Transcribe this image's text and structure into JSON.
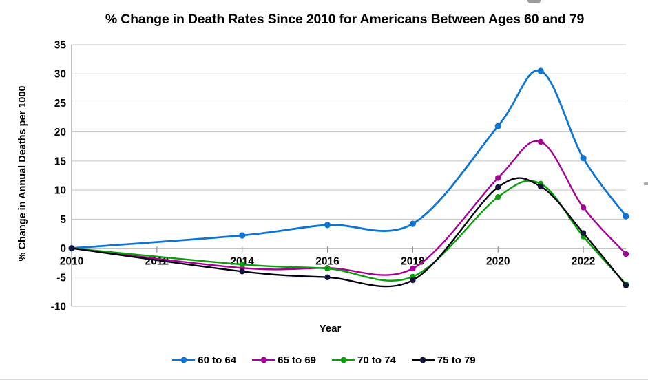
{
  "chart_data": {
    "type": "line",
    "smoothed": true,
    "title": "% Change in Death Rates Since 2010 for Americans Between Ages 60 and 79",
    "xlabel": "Year",
    "ylabel": "% Change in Annual Deaths per 1000",
    "x": [
      2010,
      2014,
      2016,
      2018,
      2020,
      2021,
      2022,
      2023
    ],
    "series": [
      {
        "name": "60 to 64",
        "color": "#0b74d4",
        "line_width": 2.8,
        "marker_radius": 4.6,
        "values": [
          0,
          2.2,
          4.0,
          4.2,
          21.0,
          30.5,
          15.5,
          5.5
        ]
      },
      {
        "name": "65 to 69",
        "color": "#a60095",
        "line_width": 2.4,
        "marker_radius": 4.2,
        "values": [
          0,
          -3.4,
          -3.4,
          -3.5,
          12.1,
          18.3,
          7.0,
          -1.0
        ]
      },
      {
        "name": "70 to 74",
        "color": "#0a9e0a",
        "line_width": 2.4,
        "marker_radius": 4.2,
        "values": [
          0,
          -2.8,
          -3.5,
          -4.9,
          8.8,
          11.1,
          2.0,
          -6.2
        ]
      },
      {
        "name": "75 to 79",
        "color": "#020210",
        "marker_color": "#13133a",
        "line_width": 2.4,
        "marker_radius": 4.2,
        "values": [
          0,
          -4.0,
          -5.0,
          -5.5,
          10.5,
          10.6,
          2.6,
          -6.4
        ]
      }
    ],
    "ylim": [
      -10,
      35
    ],
    "xlim": [
      2010,
      2023
    ],
    "y_ticks": [
      35,
      30,
      25,
      20,
      15,
      10,
      5,
      0,
      -5,
      -10
    ],
    "x_ticks": [
      2010,
      2012,
      2014,
      2016,
      2018,
      2020,
      2022
    ],
    "grid": "horizontal",
    "grid_color": "#c2c2c2",
    "axis_color": "#969696",
    "legend_position": "bottom"
  }
}
